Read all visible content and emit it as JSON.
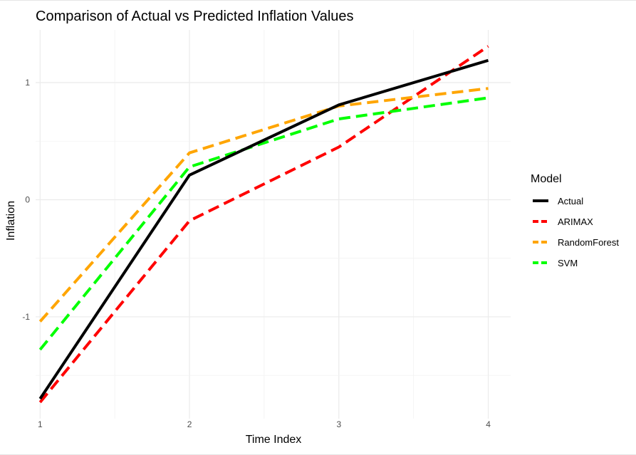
{
  "chart_data": {
    "type": "line",
    "title": "Comparison of Actual vs Predicted Inflation Values",
    "xlabel": "Time Index",
    "ylabel": "Inflation",
    "x": [
      1,
      2,
      3,
      4
    ],
    "x_ticks": [
      1,
      2,
      3,
      4
    ],
    "x_tick_labels": [
      "1",
      "2",
      "3",
      "4"
    ],
    "y_ticks": [
      -1,
      0,
      1
    ],
    "y_tick_labels": [
      "-1",
      "0",
      "1"
    ],
    "xlim": [
      0.97,
      4.15
    ],
    "ylim": [
      -1.87,
      1.45
    ],
    "grid": true,
    "legend_title": "Model",
    "legend_position": "right",
    "series": [
      {
        "name": "Actual",
        "values": [
          -1.7,
          0.21,
          0.81,
          1.19
        ],
        "color": "#000000",
        "dash": "solid"
      },
      {
        "name": "ARIMAX",
        "values": [
          -1.73,
          -0.18,
          0.45,
          1.31
        ],
        "color": "#ff0000",
        "dash": "dashed"
      },
      {
        "name": "RandomForest",
        "values": [
          -1.04,
          0.4,
          0.8,
          0.95
        ],
        "color": "#ffa500",
        "dash": "dashed"
      },
      {
        "name": "SVM",
        "values": [
          -1.28,
          0.28,
          0.69,
          0.87
        ],
        "color": "#00ff00",
        "dash": "dashed"
      }
    ]
  }
}
